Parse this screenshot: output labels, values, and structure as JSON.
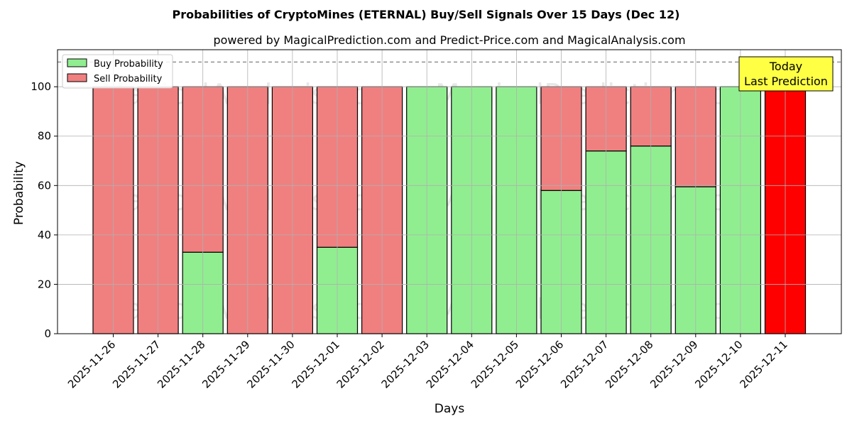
{
  "chart_data": {
    "type": "bar",
    "stacked": true,
    "title": "Probabilities of CryptoMines (ETERNAL) Buy/Sell Signals Over 15 Days (Dec 12)",
    "subtitle": "powered by MagicalPrediction.com and Predict-Price.com and MagicalAnalysis.com",
    "xlabel": "Days",
    "ylabel": "Probability",
    "ylim": [
      0,
      115
    ],
    "yticks": [
      0,
      20,
      40,
      60,
      80,
      100
    ],
    "grid": true,
    "legend_position": "top-left",
    "reference_line": {
      "y": 110,
      "style": "dashed"
    },
    "categories": [
      "2025-11-26",
      "2025-11-27",
      "2025-11-28",
      "2025-11-29",
      "2025-11-30",
      "2025-12-01",
      "2025-12-02",
      "2025-12-03",
      "2025-12-04",
      "2025-12-05",
      "2025-12-06",
      "2025-12-07",
      "2025-12-08",
      "2025-12-09",
      "2025-12-10",
      "2025-12-11"
    ],
    "series": [
      {
        "name": "Buy Probability",
        "color": "#90EE90",
        "values": [
          0,
          0,
          33,
          0,
          0,
          35,
          0,
          100,
          100,
          100,
          58,
          74,
          76,
          59.5,
          100,
          0
        ]
      },
      {
        "name": "Sell Probability",
        "color": "#F08080",
        "values": [
          100,
          100,
          67,
          100,
          100,
          65,
          100,
          0,
          0,
          0,
          42,
          26,
          24,
          40.5,
          0,
          100
        ]
      }
    ],
    "highlight": {
      "category": "2025-12-11",
      "color": "#FF0000"
    },
    "annotation": {
      "line1": "Today",
      "line2": "Last Prediction",
      "background": "#FFFF44"
    },
    "watermarks": [
      "MagicalAnalysis.com",
      "MagicalPrediction.com"
    ]
  }
}
